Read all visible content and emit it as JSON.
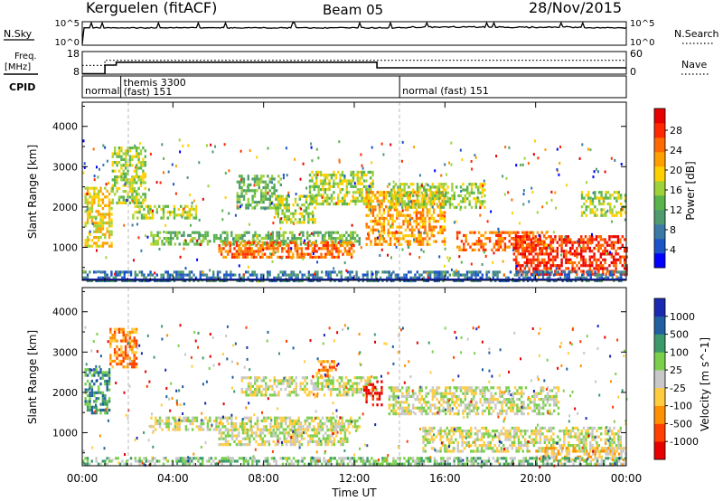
{
  "header": {
    "station": "Kerguelen (fitACF)",
    "beam": "Beam 05",
    "date": "28/Nov/2015"
  },
  "top_panels": {
    "nsky_label": "N.Sky",
    "nsky_ticks": [
      "10^5",
      "10^0"
    ],
    "nsearch_label": "N.Search",
    "nsearch_ticks": [
      "10^5",
      "10^0"
    ],
    "freq_label": "Freq.",
    "freq_unit": "[MHz]",
    "freq_ticks": [
      "18",
      "8"
    ],
    "nave_label": "Nave",
    "nave_ticks": [
      "60",
      "0"
    ],
    "cpid_label": "CPID",
    "cpid_segments": [
      {
        "start_hour": 0.0,
        "name": "normal",
        "name2": ""
      },
      {
        "start_hour": 1.7,
        "name": "themis 3300",
        "name2": "(fast) 151"
      },
      {
        "start_hour": 14.0,
        "name": "normal (fast) 151",
        "name2": ""
      }
    ],
    "freq_step": [
      {
        "hour": 0.0,
        "mhz": 8.2
      },
      {
        "hour": 1.0,
        "mhz": 8.2
      },
      {
        "hour": 1.0,
        "mhz": 12.0
      },
      {
        "hour": 1.5,
        "mhz": 12.0
      },
      {
        "hour": 1.5,
        "mhz": 13.3
      },
      {
        "hour": 13.0,
        "mhz": 13.3
      },
      {
        "hour": 13.0,
        "mhz": 10.8
      },
      {
        "hour": 24.0,
        "mhz": 10.8
      }
    ],
    "nave_dotted": [
      {
        "hour": 0.0,
        "val": 23
      },
      {
        "hour": 1.0,
        "val": 23
      },
      {
        "hour": 1.0,
        "val": 37
      },
      {
        "hour": 24.0,
        "val": 37
      }
    ]
  },
  "chart_data": [
    {
      "type": "heatmap",
      "title": "",
      "xlabel": "Time UT",
      "ylabel": "Slant Range [km]",
      "xlim_hours": [
        0,
        24
      ],
      "x_ticks": [
        "00:00",
        "04:00",
        "08:00",
        "12:00",
        "16:00",
        "20:00",
        "00:00"
      ],
      "ylim_km": [
        180,
        4600
      ],
      "y_ticks": [
        1000,
        2000,
        3000,
        4000
      ],
      "colorbar": {
        "label": "Power [dB]",
        "ticks": [
          "28",
          "24",
          "20",
          "16",
          "12",
          "8",
          "4"
        ],
        "colors": [
          "#0000ff",
          "#1a54c8",
          "#3c7aa6",
          "#4f9a6e",
          "#5ab44c",
          "#9fd23a",
          "#ffd000",
          "#ffa000",
          "#ff6a00",
          "#ff2800",
          "#e80000"
        ]
      },
      "echo_regions": [
        {
          "t0": 0.1,
          "t1": 1.3,
          "r0": 1050,
          "r1": 2500,
          "level": 6
        },
        {
          "t0": 1.3,
          "t1": 2.8,
          "r0": 2100,
          "r1": 3500,
          "level": 5
        },
        {
          "t0": 2.2,
          "t1": 5.0,
          "r0": 1700,
          "r1": 2050,
          "level": 5
        },
        {
          "t0": 3.0,
          "t1": 12.2,
          "r0": 1100,
          "r1": 1400,
          "level": 4
        },
        {
          "t0": 6.0,
          "t1": 12.0,
          "r0": 750,
          "r1": 1150,
          "level": 8
        },
        {
          "t0": 6.8,
          "t1": 8.8,
          "r0": 2000,
          "r1": 2800,
          "level": 4
        },
        {
          "t0": 8.5,
          "t1": 10.3,
          "r0": 1600,
          "r1": 2300,
          "level": 5
        },
        {
          "t0": 10.0,
          "t1": 12.8,
          "r0": 2050,
          "r1": 2900,
          "level": 5
        },
        {
          "t0": 12.5,
          "t1": 16.0,
          "r0": 1100,
          "r1": 2400,
          "level": 7
        },
        {
          "t0": 13.5,
          "t1": 17.8,
          "r0": 2000,
          "r1": 2600,
          "level": 5
        },
        {
          "t0": 16.5,
          "t1": 20.5,
          "r0": 900,
          "r1": 1400,
          "level": 8
        },
        {
          "t0": 19.0,
          "t1": 24.0,
          "r0": 350,
          "r1": 1300,
          "level": 9
        },
        {
          "t0": 22.0,
          "t1": 24.0,
          "r0": 1800,
          "r1": 2400,
          "level": 5
        },
        {
          "t0": 0.0,
          "t1": 24.0,
          "r0": 190,
          "r1": 420,
          "level": 2
        }
      ]
    },
    {
      "type": "heatmap",
      "title": "",
      "xlabel": "Time UT",
      "ylabel": "Slant Range [km]",
      "xlim_hours": [
        0,
        24
      ],
      "x_ticks": [
        "00:00",
        "04:00",
        "08:00",
        "12:00",
        "16:00",
        "20:00",
        "00:00"
      ],
      "ylim_km": [
        180,
        4600
      ],
      "y_ticks": [
        1000,
        2000,
        3000,
        4000
      ],
      "colorbar": {
        "label": "Velocity [m s^-1]",
        "ticks": [
          "1000",
          "500",
          "100",
          "25",
          "-25",
          "-100",
          "-500",
          "-1000"
        ],
        "colors": [
          "#e80000",
          "#ff4000",
          "#ff9000",
          "#ffcc40",
          "#c8c8c8",
          "#7ad04a",
          "#3c9a6a",
          "#2060a0",
          "#1a2ab0"
        ]
      },
      "echo_regions": [
        {
          "t0": 0.1,
          "t1": 1.2,
          "r0": 1500,
          "r1": 2600,
          "level": 6
        },
        {
          "t0": 1.2,
          "t1": 2.4,
          "r0": 2600,
          "r1": 3600,
          "level": 2
        },
        {
          "t0": 3.0,
          "t1": 12.2,
          "r0": 1100,
          "r1": 1400,
          "level": 4
        },
        {
          "t0": 6.0,
          "t1": 11.8,
          "r0": 700,
          "r1": 1100,
          "level": 4
        },
        {
          "t0": 7.0,
          "t1": 13.0,
          "r0": 1900,
          "r1": 2400,
          "level": 4
        },
        {
          "t0": 10.3,
          "t1": 11.1,
          "r0": 2400,
          "r1": 2800,
          "level": 2
        },
        {
          "t0": 12.4,
          "t1": 13.2,
          "r0": 1700,
          "r1": 2300,
          "level": 0
        },
        {
          "t0": 13.5,
          "t1": 21.0,
          "r0": 1450,
          "r1": 2150,
          "level": 4
        },
        {
          "t0": 15.0,
          "t1": 23.8,
          "r0": 550,
          "r1": 1150,
          "level": 4
        },
        {
          "t0": 20.0,
          "t1": 24.0,
          "r0": 300,
          "r1": 650,
          "level": 3
        },
        {
          "t0": 0.0,
          "t1": 24.0,
          "r0": 190,
          "r1": 400,
          "level": 5
        }
      ]
    }
  ]
}
